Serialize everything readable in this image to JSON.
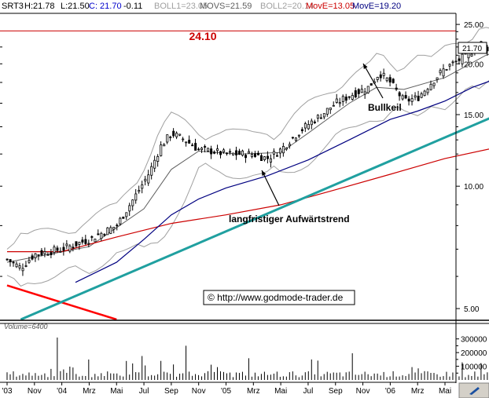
{
  "header": {
    "symbol": "SRT3",
    "high": "H:21.78",
    "low": "L:21.50",
    "close": "C: 21.70",
    "change": "-0.11",
    "boll1": "BOLL1=23.05",
    "movs": "MOVS=21.59",
    "boll2": "BOLL2=20.14",
    "move1": "MovE=13.05",
    "move2": "MovE=19.20"
  },
  "annotations": {
    "resistance_label": "24.10",
    "pattern_label": "Bullkeil",
    "trend_label": "langfristiger Aufwärtstrend",
    "copyright": "© http://www.godmode-trader.de",
    "last_price_tag": "21.70"
  },
  "volume_label": "Volume=6400",
  "colors": {
    "candles": "#000000",
    "resistance": "#cc0000",
    "trendline": "#20a0a0",
    "wedge": "#20b0b0",
    "bollinger": "#a0a0a0",
    "movs": "#606060",
    "ema_fast": "#000080",
    "ema_slow": "#cc0000",
    "projection": "#0000cc",
    "downtrend": "#ff0000"
  },
  "chart_data": {
    "type": "candlestick",
    "scale": "log",
    "ylim": [
      4.7,
      26.5
    ],
    "y_ticks": [
      "5.00",
      "10.00",
      "15.00",
      "20.00",
      "25.00"
    ],
    "x_ticks": [
      "'03",
      "Nov",
      "'04",
      "Mrz",
      "Mai",
      "Jul",
      "Sep",
      "Nov",
      "'05",
      "Mrz",
      "Mai",
      "Jul",
      "Sep",
      "Nov",
      "'06",
      "Mrz",
      "Mai"
    ],
    "resistance": 24.1,
    "last_close": 21.7,
    "price_path": [
      {
        "t": 0,
        "v": 6.6
      },
      {
        "t": 0.5,
        "v": 6.3
      },
      {
        "t": 1,
        "v": 6.8
      },
      {
        "t": 2,
        "v": 7.0
      },
      {
        "t": 3,
        "v": 7.4
      },
      {
        "t": 4,
        "v": 8.0
      },
      {
        "t": 4.7,
        "v": 9.5
      },
      {
        "t": 5.2,
        "v": 10.8
      },
      {
        "t": 5.6,
        "v": 12.5
      },
      {
        "t": 6,
        "v": 13.5
      },
      {
        "t": 6.5,
        "v": 13.0
      },
      {
        "t": 7,
        "v": 12.3
      },
      {
        "t": 7.5,
        "v": 12.2
      },
      {
        "t": 8,
        "v": 12.0
      },
      {
        "t": 9,
        "v": 12.0
      },
      {
        "t": 9.5,
        "v": 11.7
      },
      {
        "t": 10,
        "v": 12.3
      },
      {
        "t": 10.5,
        "v": 13.3
      },
      {
        "t": 11,
        "v": 14.2
      },
      {
        "t": 11.5,
        "v": 15.0
      },
      {
        "t": 12,
        "v": 16.0
      },
      {
        "t": 12.6,
        "v": 16.8
      },
      {
        "t": 13.2,
        "v": 17.5
      },
      {
        "t": 13.6,
        "v": 19.0
      },
      {
        "t": 14,
        "v": 18.0
      },
      {
        "t": 14.5,
        "v": 16.2
      },
      {
        "t": 15,
        "v": 16.5
      },
      {
        "t": 15.5,
        "v": 18.0
      },
      {
        "t": 16,
        "v": 19.5
      },
      {
        "t": 16.8,
        "v": 21.0
      },
      {
        "t": 17.3,
        "v": 22.5
      },
      {
        "t": 17.8,
        "v": 21.3
      },
      {
        "t": 18.3,
        "v": 21.8
      },
      {
        "t": 18.6,
        "v": 23.2
      },
      {
        "t": 19,
        "v": 22.0
      },
      {
        "t": 19.4,
        "v": 22.2
      },
      {
        "t": 19.7,
        "v": 21.5
      },
      {
        "t": 20,
        "v": 21.0
      },
      {
        "t": 20.3,
        "v": 21.8
      }
    ],
    "movs_path": [
      {
        "t": 0,
        "v": 6.5
      },
      {
        "t": 3,
        "v": 7.1
      },
      {
        "t": 5,
        "v": 8.8
      },
      {
        "t": 6,
        "v": 11.0
      },
      {
        "t": 7,
        "v": 12.2
      },
      {
        "t": 8.5,
        "v": 12.0
      },
      {
        "t": 10,
        "v": 12.1
      },
      {
        "t": 11,
        "v": 13.5
      },
      {
        "t": 12.5,
        "v": 16.0
      },
      {
        "t": 13.5,
        "v": 17.5
      },
      {
        "t": 14.5,
        "v": 17.3
      },
      {
        "t": 16,
        "v": 18.5
      },
      {
        "t": 17.5,
        "v": 21.0
      },
      {
        "t": 18.5,
        "v": 22.0
      },
      {
        "t": 20.3,
        "v": 21.6
      }
    ],
    "ema_fast_path": [
      {
        "t": 2.5,
        "v": 5.8
      },
      {
        "t": 4,
        "v": 6.5
      },
      {
        "t": 5,
        "v": 7.4
      },
      {
        "t": 6,
        "v": 8.5
      },
      {
        "t": 7,
        "v": 9.3
      },
      {
        "t": 8,
        "v": 9.9
      },
      {
        "t": 9.5,
        "v": 10.6
      },
      {
        "t": 11,
        "v": 11.6
      },
      {
        "t": 12.5,
        "v": 13.0
      },
      {
        "t": 14,
        "v": 14.6
      },
      {
        "t": 15,
        "v": 15.3
      },
      {
        "t": 16,
        "v": 16.2
      },
      {
        "t": 17,
        "v": 17.5
      },
      {
        "t": 18,
        "v": 18.5
      },
      {
        "t": 19,
        "v": 19.0
      },
      {
        "t": 20,
        "v": 19.5
      }
    ],
    "ema_slow_path": [
      {
        "t": 0,
        "v": 6.9
      },
      {
        "t": 2,
        "v": 6.9
      },
      {
        "t": 4,
        "v": 7.5
      },
      {
        "t": 6,
        "v": 8.1
      },
      {
        "t": 8,
        "v": 8.5
      },
      {
        "t": 10,
        "v": 9.0
      },
      {
        "t": 12,
        "v": 9.8
      },
      {
        "t": 14,
        "v": 10.7
      },
      {
        "t": 16,
        "v": 11.7
      },
      {
        "t": 18,
        "v": 12.5
      },
      {
        "t": 20,
        "v": 13.3
      }
    ],
    "trendline": [
      {
        "t": 0.5,
        "v": 4.7
      },
      {
        "t": 23,
        "v": 21.0
      }
    ],
    "downtrend": [
      {
        "t": 0,
        "v": 5.7
      },
      {
        "t": 4,
        "v": 4.7
      }
    ],
    "wedge_upper": [
      {
        "t": 18.6,
        "v": 24.1
      },
      {
        "t": 23,
        "v": 18.5
      }
    ],
    "wedge_lower": [
      {
        "t": 18.6,
        "v": 21.0
      },
      {
        "t": 23,
        "v": 18.5
      }
    ],
    "projection": [
      {
        "t": 20.4,
        "v": 21.8
      },
      {
        "t": 20.8,
        "v": 24.1
      },
      {
        "t": 21.2,
        "v": 24.1
      },
      {
        "t": 21.6,
        "v": 26.5
      }
    ],
    "volume_ticks": [
      "100000",
      "200000",
      "300000"
    ],
    "volume_ylim": [
      0,
      350000
    ]
  }
}
